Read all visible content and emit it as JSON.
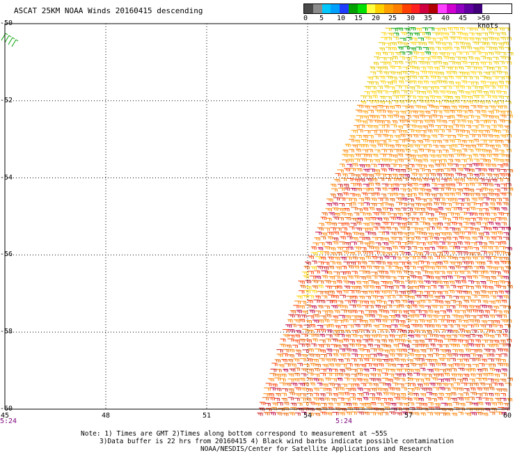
{
  "title": "ASCAT 25KM NOAA Winds 20160415 descending",
  "legend": {
    "ticks": [
      "0",
      "5",
      "10",
      "15",
      "20",
      "25",
      "30",
      "35",
      "40",
      "45",
      ">50 knots"
    ],
    "colors": [
      "#4a4a4a",
      "#8c8c8c",
      "#00c8ff",
      "#00a0ff",
      "#1f3cff",
      "#00a000",
      "#00e000",
      "#ffff40",
      "#ffd000",
      "#ffa000",
      "#ff8000",
      "#ff4000",
      "#ff2020",
      "#d00040",
      "#b00000",
      "#ff40ff",
      "#d000d0",
      "#9000c0",
      "#6000a0",
      "#40007a"
    ]
  },
  "map": {
    "lat_labels": [
      "-50",
      "-52",
      "-54",
      "-56",
      "-58",
      "-60"
    ],
    "lon_labels": [
      "45",
      "48",
      "51",
      "54",
      "57",
      "60"
    ],
    "time_labels": [
      "5:24",
      "5:24"
    ],
    "barb_colors": [
      "#00a000",
      "#e8c800",
      "#ffd000",
      "#ffa000",
      "#ff8000",
      "#e86000",
      "#ff4000",
      "#d02020",
      "#c00040"
    ]
  },
  "chart_data": {
    "type": "scatter",
    "title": "ASCAT 25KM NOAA Winds 20160415 descending",
    "xlabel": "",
    "ylabel": "",
    "xlim": [
      45,
      60
    ],
    "ylim": [
      -60,
      -50
    ],
    "x_ticks": [
      45,
      48,
      51,
      54,
      57,
      60
    ],
    "y_ticks": [
      -50,
      -52,
      -54,
      -56,
      -58,
      -60
    ],
    "grid": true,
    "swath": {
      "description": "wind barbs",
      "dominant_speed_knots": [
        25,
        35
      ]
    }
  },
  "notes": {
    "line1": "Note: 1) Times are GMT 2)Times along bottom correspond to measurement at ~55S",
    "line2": "3)Data buffer is 22 hrs from 20160415 4) Black wind barbs indicate possible contamination",
    "line3": "NOAA/NESDIS/Center for Satellite Applications and Research"
  }
}
